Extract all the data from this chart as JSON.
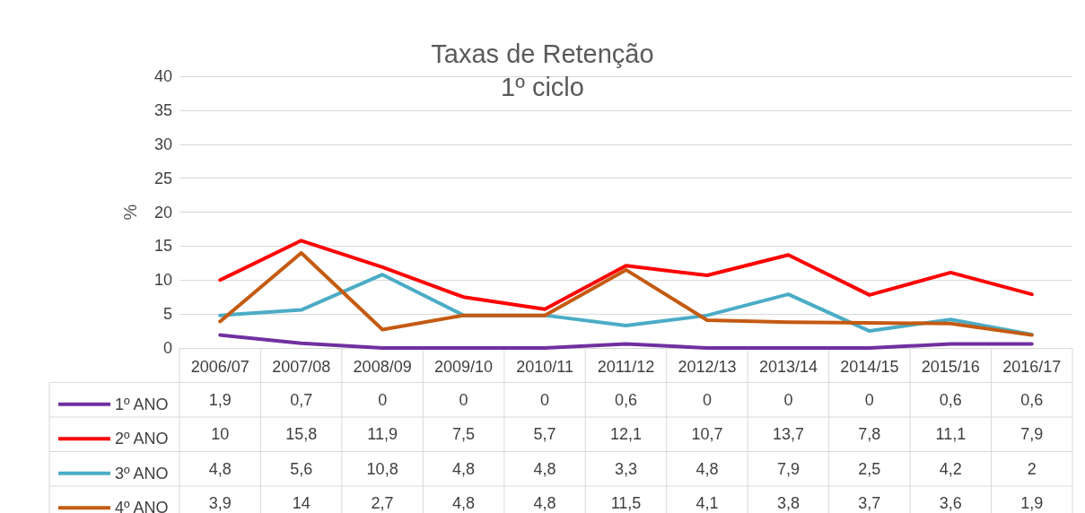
{
  "chart_data": {
    "type": "line",
    "title": "Taxas de Retenção",
    "subtitle": "1º ciclo",
    "ylabel": "%",
    "categories": [
      "2006/07",
      "2007/08",
      "2008/09",
      "2009/10",
      "2010/11",
      "2011/12",
      "2012/13",
      "2013/14",
      "2014/15",
      "2015/16",
      "2016/17"
    ],
    "series": [
      {
        "name": "1º ANO",
        "color": "#7030a0",
        "values": [
          1.9,
          0.7,
          0,
          0,
          0,
          0.6,
          0,
          0,
          0,
          0.6,
          0.6
        ],
        "value_labels": [
          "1,9",
          "0,7",
          "0",
          "0",
          "0",
          "0,6",
          "0",
          "0",
          "0",
          "0,6",
          "0,6"
        ]
      },
      {
        "name": "2º ANO",
        "color": "#ff0000",
        "values": [
          10,
          15.8,
          11.9,
          7.5,
          5.7,
          12.1,
          10.7,
          13.7,
          7.8,
          11.1,
          7.9
        ],
        "value_labels": [
          "10",
          "15,8",
          "11,9",
          "7,5",
          "5,7",
          "12,1",
          "10,7",
          "13,7",
          "7,8",
          "11,1",
          "7,9"
        ]
      },
      {
        "name": "3º ANO",
        "color": "#4bacc6",
        "values": [
          4.8,
          5.6,
          10.8,
          4.8,
          4.8,
          3.3,
          4.8,
          7.9,
          2.5,
          4.2,
          2
        ],
        "value_labels": [
          "4,8",
          "5,6",
          "10,8",
          "4,8",
          "4,8",
          "3,3",
          "4,8",
          "7,9",
          "2,5",
          "4,2",
          "2"
        ]
      },
      {
        "name": "4º ANO",
        "color": "#c55a11",
        "values": [
          3.9,
          14,
          2.7,
          4.8,
          4.8,
          11.5,
          4.1,
          3.8,
          3.7,
          3.6,
          1.9
        ],
        "value_labels": [
          "3,9",
          "14",
          "2,7",
          "4,8",
          "4,8",
          "11,5",
          "4,1",
          "3,8",
          "3,7",
          "3,6",
          "1,9"
        ]
      }
    ],
    "ylim": [
      0,
      40
    ],
    "yticks": [
      0,
      5,
      10,
      15,
      20,
      25,
      30,
      35,
      40
    ],
    "grid": "y",
    "legend": "bottom left",
    "marker": "none",
    "line_style": "solid"
  }
}
